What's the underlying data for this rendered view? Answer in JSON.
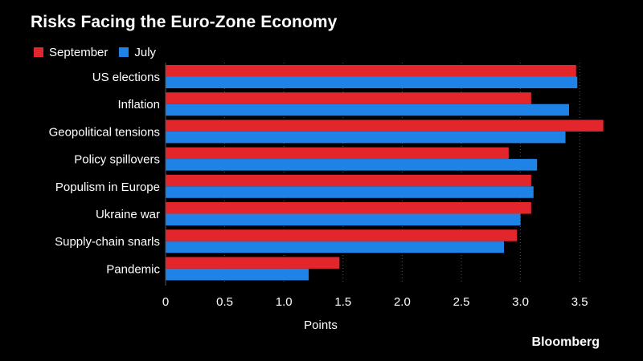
{
  "title": "Risks Facing the Euro-Zone Economy",
  "brand": "Bloomberg",
  "colors": {
    "background": "#000000",
    "text": "#ffffff",
    "gridline": "#555555",
    "september": "#e3262b",
    "july": "#1f82e6"
  },
  "legend": [
    {
      "label": "September",
      "color": "#e3262b"
    },
    {
      "label": "July",
      "color": "#1f82e6"
    }
  ],
  "chart_data": {
    "type": "bar",
    "orientation": "horizontal",
    "title": "Risks Facing the Euro-Zone Economy",
    "xlabel": "Points",
    "ylabel": "",
    "categories": [
      "US elections",
      "Inflation",
      "Geopolitical tensions",
      "Policy spillovers",
      "Populism in Europe",
      "Ukraine war",
      "Supply-chain snarls",
      "Pandemic"
    ],
    "series": [
      {
        "name": "September",
        "color": "#e3262b",
        "values": [
          3.47,
          3.09,
          3.7,
          2.9,
          3.09,
          3.09,
          2.97,
          1.47
        ]
      },
      {
        "name": "July",
        "color": "#1f82e6",
        "values": [
          3.48,
          3.41,
          3.38,
          3.14,
          3.11,
          3.0,
          2.86,
          1.21
        ]
      }
    ],
    "xlim": [
      0,
      3.8
    ],
    "xticks": [
      0,
      0.5,
      1.0,
      1.5,
      2.0,
      2.5,
      3.0,
      3.5
    ],
    "xtick_labels": [
      "0",
      "0.5",
      "1.0",
      "1.5",
      "2.0",
      "2.5",
      "3.0",
      "3.5"
    ],
    "grid": "vertical-dotted",
    "legend_position": "top-left"
  }
}
